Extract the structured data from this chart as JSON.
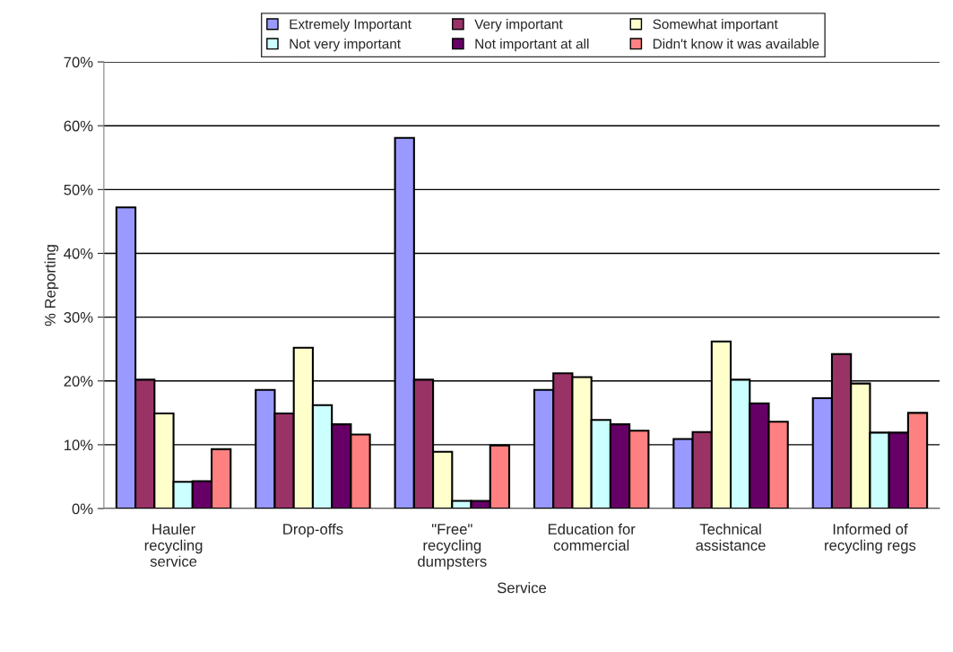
{
  "chart_data": {
    "type": "bar",
    "xlabel": "Service",
    "ylabel": "% Reporting",
    "categories": [
      "Hauler\nrecycling\nservice",
      "Drop-offs",
      "\"Free\"\nrecycling\ndumpsters",
      "Education for\ncommercial",
      "Technical\nassistance",
      "Informed of\nrecycling regs"
    ],
    "series": [
      {
        "name": "Extremely Important",
        "color": "#9999ff",
        "values": [
          47.2,
          18.6,
          58.1,
          18.6,
          10.9,
          17.3
        ]
      },
      {
        "name": "Very important",
        "color": "#993366",
        "values": [
          20.2,
          14.9,
          20.2,
          21.2,
          12.0,
          24.2
        ]
      },
      {
        "name": "Somewhat important",
        "color": "#ffffcc",
        "values": [
          14.9,
          25.2,
          8.9,
          20.6,
          26.2,
          19.6
        ]
      },
      {
        "name": "Not very important",
        "color": "#ccffff",
        "values": [
          4.2,
          16.2,
          1.2,
          13.9,
          20.2,
          11.9
        ]
      },
      {
        "name": "Not important at all",
        "color": "#660066",
        "values": [
          4.3,
          13.2,
          1.2,
          13.2,
          16.5,
          11.9
        ]
      },
      {
        "name": "Didn't know it was available",
        "color": "#ff8080",
        "values": [
          9.3,
          11.6,
          9.9,
          12.2,
          13.6,
          15.0
        ]
      }
    ],
    "ylim": [
      0,
      70
    ],
    "yticks": [
      {
        "value": 0,
        "label": "0%"
      },
      {
        "value": 10,
        "label": "10%"
      },
      {
        "value": 20,
        "label": "20%"
      },
      {
        "value": 30,
        "label": "30%"
      },
      {
        "value": 40,
        "label": "40%"
      },
      {
        "value": 50,
        "label": "50%"
      },
      {
        "value": 60,
        "label": "60%"
      },
      {
        "value": 70,
        "label": "70%"
      }
    ],
    "grid": "y",
    "legend": "top"
  }
}
